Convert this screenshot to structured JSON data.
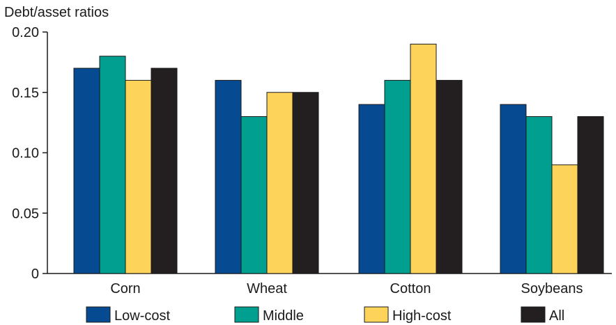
{
  "chart_data": {
    "type": "bar",
    "ylabel": "Debt/asset ratios",
    "categories": [
      "Corn",
      "Wheat",
      "Cotton",
      "Soybeans"
    ],
    "ylim": [
      0,
      0.2
    ],
    "yticks": [
      "0",
      "0.05",
      "0.10",
      "0.15",
      "0.20"
    ],
    "ytick_values": [
      0,
      0.05,
      0.1,
      0.15,
      0.2
    ],
    "grid": false,
    "legend_position": "bottom",
    "series": [
      {
        "name": "Low-cost",
        "color": "#064a91",
        "values": [
          0.17,
          0.16,
          0.14,
          0.14
        ]
      },
      {
        "name": "Middle",
        "color": "#009f8f",
        "values": [
          0.18,
          0.13,
          0.16,
          0.13
        ]
      },
      {
        "name": "High-cost",
        "color": "#fdd35a",
        "values": [
          0.16,
          0.15,
          0.19,
          0.09
        ]
      },
      {
        "name": "All",
        "color": "#231f20",
        "values": [
          0.17,
          0.15,
          0.16,
          0.13
        ]
      }
    ]
  }
}
